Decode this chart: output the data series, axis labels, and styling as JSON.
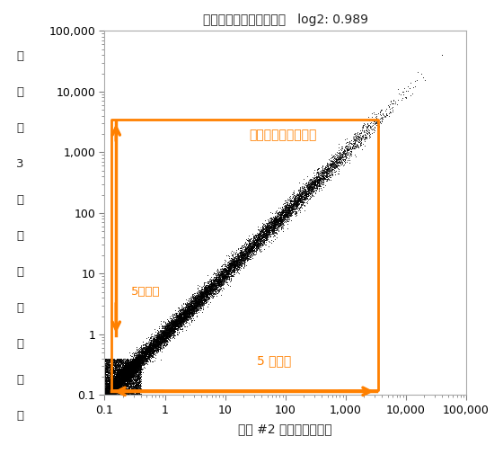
{
  "title": "ピアソンの積率相関係数   log2: 0.989",
  "xlabel": "複製 #2 中の遙伝子発現",
  "ylabel_chars": [
    "複",
    "製",
    "＃",
    "3",
    "内",
    "の",
    "遙",
    "伝",
    "子",
    "発",
    "現"
  ],
  "xlim": [
    0.1,
    100000
  ],
  "ylim": [
    0.1,
    100000
  ],
  "orange_color": "#FF8000",
  "title_color": "#333333",
  "dynamic_range_label": "ダイナミックレンジ",
  "arrow_label_v": "5桁以上",
  "arrow_label_h": "5 桁以上",
  "rect_xmin": 0.13,
  "rect_ymin": 0.12,
  "rect_xmax": 3500,
  "rect_ymax": 3500,
  "n_points": 20000,
  "seed": 42
}
